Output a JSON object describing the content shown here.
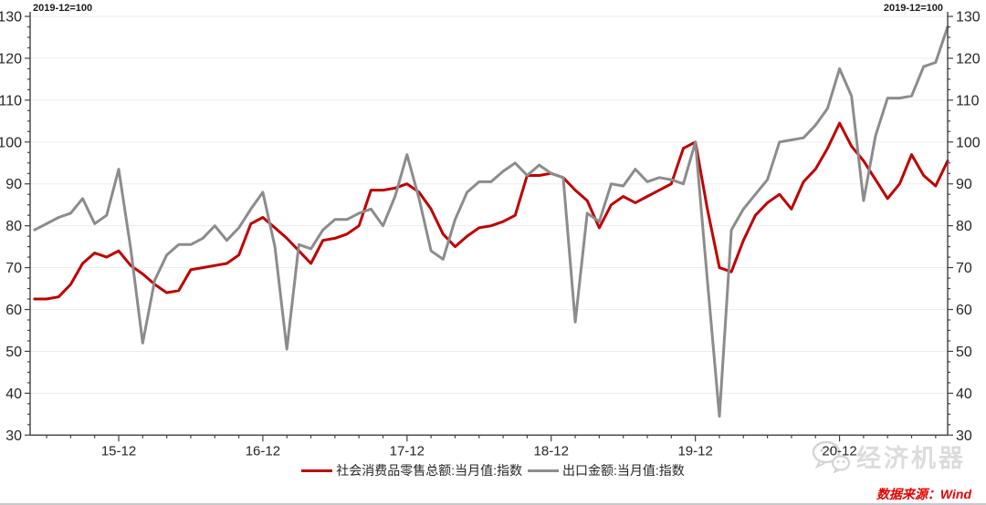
{
  "header": {
    "note_left": "2019-12=100",
    "note_right": "2019-12=100"
  },
  "watermark": {
    "text": "经济机器",
    "icon": "wechat-logo"
  },
  "source": {
    "text": "数据来源：Wind",
    "color": "#e60000"
  },
  "axis_colors": {
    "axis_line": "#404040",
    "tick_label": "#262626",
    "gridline": "#ededed"
  },
  "chart_data": {
    "type": "line",
    "title": "",
    "subtitle_note": "2019-12=100",
    "grid": "horizontal",
    "legend_position": "bottom-center",
    "ylim": [
      30,
      130
    ],
    "y_axis_ticks": [
      30,
      40,
      50,
      60,
      70,
      80,
      90,
      100,
      110,
      120,
      130
    ],
    "x_axis_ticks": [
      "15-12",
      "16-12",
      "17-12",
      "18-12",
      "19-12",
      "20-12"
    ],
    "x": [
      "15-05",
      "15-06",
      "15-07",
      "15-08",
      "15-09",
      "15-10",
      "15-11",
      "15-12",
      "16-01",
      "16-02",
      "16-03",
      "16-04",
      "16-05",
      "16-06",
      "16-07",
      "16-08",
      "16-09",
      "16-10",
      "16-11",
      "16-12",
      "17-01",
      "17-02",
      "17-03",
      "17-04",
      "17-05",
      "17-06",
      "17-07",
      "17-08",
      "17-09",
      "17-10",
      "17-11",
      "17-12",
      "18-01",
      "18-02",
      "18-03",
      "18-04",
      "18-05",
      "18-06",
      "18-07",
      "18-08",
      "18-09",
      "18-10",
      "18-11",
      "18-12",
      "19-01",
      "19-02",
      "19-03",
      "19-04",
      "19-05",
      "19-06",
      "19-07",
      "19-08",
      "19-09",
      "19-10",
      "19-11",
      "19-12",
      "20-01",
      "20-02",
      "20-03",
      "20-04",
      "20-05",
      "20-06",
      "20-07",
      "20-08",
      "20-09",
      "20-10",
      "20-11",
      "20-12",
      "21-01",
      "21-02",
      "21-03",
      "21-04",
      "21-05",
      "21-06",
      "21-07",
      "21-08",
      "21-09"
    ],
    "series": [
      {
        "key": "retail",
        "name": "社会消费品零售总额:当月值:指数",
        "color": "#C00000",
        "values": [
          62.5,
          62.5,
          63,
          66,
          71,
          73.5,
          72.5,
          74,
          70.5,
          68.5,
          66,
          64,
          64.5,
          69.5,
          70,
          70.5,
          71,
          73,
          80.5,
          82,
          79.5,
          77,
          74,
          71,
          76.5,
          77,
          78,
          80,
          88.5,
          88.5,
          89,
          90,
          88,
          84,
          78,
          75,
          77.5,
          79.5,
          80,
          81,
          82.5,
          92,
          92,
          92.5,
          91.5,
          88.5,
          86,
          79.5,
          85,
          87,
          85.5,
          87,
          88.5,
          90,
          98.5,
          100,
          84,
          70,
          69,
          76.5,
          82.5,
          85.5,
          87.5,
          84,
          90.5,
          93.5,
          98.5,
          104.5,
          99,
          95.5,
          91,
          86.5,
          90,
          97,
          92,
          89.5,
          95.5
        ]
      },
      {
        "key": "export",
        "name": "出口金额:当月值:指数",
        "color": "#8C8C8C",
        "values": [
          79,
          80.5,
          82,
          83,
          86.5,
          80.5,
          82.5,
          93.5,
          74.5,
          52,
          67,
          73,
          75.5,
          75.5,
          77,
          80,
          76.5,
          79.5,
          84,
          88,
          75,
          50.5,
          75.5,
          74.5,
          79,
          81.5,
          81.5,
          83,
          84,
          80,
          87,
          97,
          86.5,
          74,
          72,
          81.5,
          88,
          90.5,
          90.5,
          93,
          95,
          92,
          94.5,
          92.5,
          91.5,
          57,
          83,
          81,
          90,
          89.5,
          93.5,
          90.5,
          91.5,
          91,
          90,
          100,
          67,
          34.5,
          79,
          84,
          87.5,
          91,
          100,
          100.5,
          101,
          104,
          108,
          117.5,
          111,
          86,
          101.5,
          110.5,
          110.5,
          111,
          118,
          119,
          127.5
        ]
      }
    ]
  }
}
